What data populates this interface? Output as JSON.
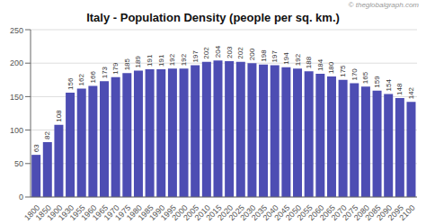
{
  "chart_data": {
    "type": "bar",
    "title": "Italy - Population Density (people per sq. km.)",
    "annotations": [
      "© theglobalgraph.com"
    ],
    "categories": [
      "1800",
      "1850",
      "1900",
      "1930",
      "1955",
      "1960",
      "1965",
      "1970",
      "1975",
      "1980",
      "1985",
      "1990",
      "1995",
      "2000",
      "2005",
      "2010",
      "2015",
      "2020",
      "2025",
      "2030",
      "2035",
      "2040",
      "2045",
      "2050",
      "2055",
      "2060",
      "2065",
      "2070",
      "2075",
      "2080",
      "2085",
      "2090",
      "2095",
      "2100"
    ],
    "values": [
      63,
      82,
      108,
      156,
      162,
      166,
      173,
      179,
      185,
      189,
      191,
      191,
      192,
      192,
      197,
      202,
      204,
      203,
      202,
      200,
      198,
      197,
      194,
      192,
      188,
      184,
      180,
      175,
      170,
      165,
      159,
      154,
      148,
      142
    ],
    "color": "#4d4db3",
    "ylim": [
      0,
      250
    ],
    "yticks": [
      0,
      50,
      100,
      150,
      200,
      250
    ],
    "grid": true,
    "data_labels": true
  }
}
